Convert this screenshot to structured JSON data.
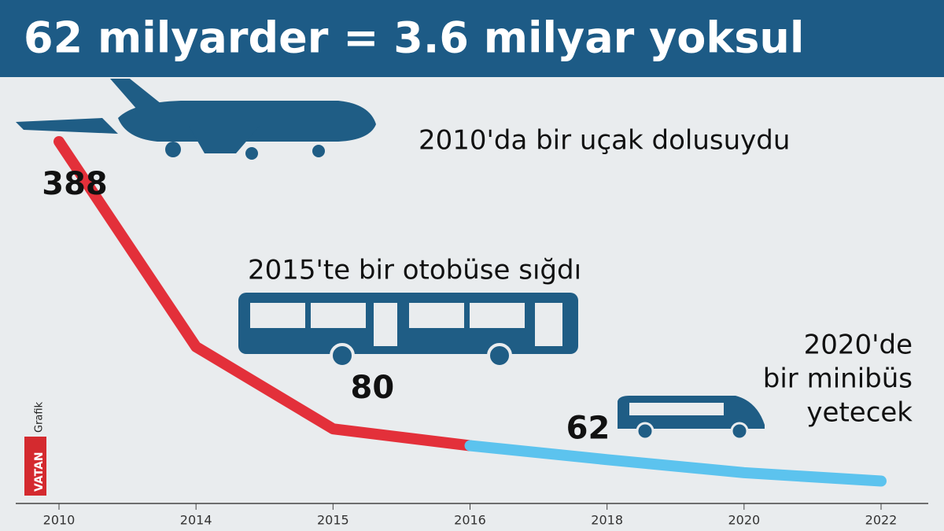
{
  "chart_data": {
    "type": "line",
    "title": "62 milyarder = 3.6 milyar yoksul",
    "categories": [
      "2010",
      "2014",
      "2015",
      "2016",
      "2018",
      "2020",
      "2022"
    ],
    "series": [
      {
        "color": "#e3303a",
        "values": [
          388,
          168,
          80,
          62,
          null,
          null,
          null
        ],
        "value_labels": [
          "388",
          null,
          "80",
          null,
          null,
          null,
          null
        ]
      },
      {
        "color": "#5cc3ee",
        "values": [
          null,
          null,
          null,
          62,
          47,
          33,
          24
        ],
        "value_labels": [
          null,
          null,
          null,
          "62",
          null,
          null,
          null
        ]
      }
    ],
    "annotations": [
      [
        "2010'da bir uçak dolusuydu"
      ],
      [
        "2015'te bir otobüse sığdı"
      ],
      [
        "2020'de",
        "bir minibüs",
        "yetecek"
      ]
    ],
    "credit": [
      "VATAN",
      "Grafik"
    ]
  }
}
